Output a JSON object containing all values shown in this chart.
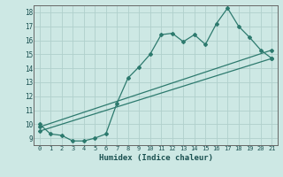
{
  "xlabel": "Humidex (Indice chaleur)",
  "xlim": [
    -0.5,
    21.5
  ],
  "ylim": [
    8.5,
    18.5
  ],
  "xticks": [
    0,
    1,
    2,
    3,
    4,
    5,
    6,
    7,
    8,
    9,
    10,
    11,
    12,
    13,
    14,
    15,
    16,
    17,
    18,
    19,
    20,
    21
  ],
  "yticks": [
    9,
    10,
    11,
    12,
    13,
    14,
    15,
    16,
    17,
    18
  ],
  "bg_color": "#cde8e4",
  "grid_color": "#b0d0cc",
  "line_color": "#2d7a6e",
  "line1_x": [
    0,
    1,
    2,
    3,
    4,
    5,
    6,
    7,
    8,
    9,
    10,
    11,
    12,
    13,
    14,
    15,
    16,
    17,
    18,
    19,
    20,
    21
  ],
  "line1_y": [
    10.0,
    9.3,
    9.2,
    8.8,
    8.8,
    9.0,
    9.3,
    11.5,
    13.3,
    14.1,
    15.0,
    16.4,
    16.5,
    15.9,
    16.4,
    15.7,
    17.2,
    18.3,
    17.0,
    16.2,
    15.3,
    14.7
  ],
  "line2_x": [
    0,
    21
  ],
  "line2_y": [
    9.8,
    15.3
  ],
  "line3_x": [
    0,
    21
  ],
  "line3_y": [
    9.5,
    14.7
  ]
}
